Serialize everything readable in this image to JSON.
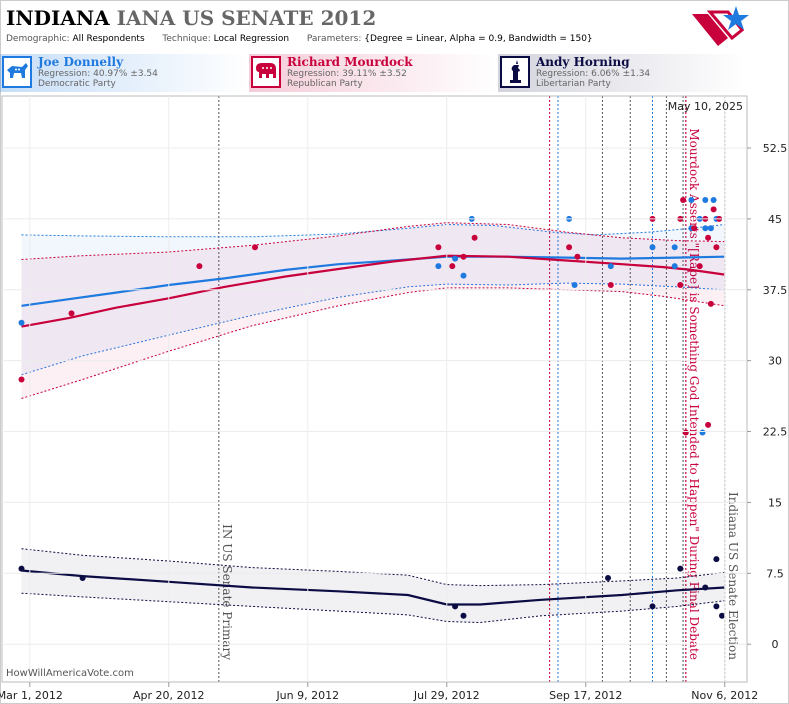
{
  "header": {
    "title_state": "INDIANA",
    "title_rest": "IANA US SENATE 2012",
    "demographic_label": "Demographic:",
    "demographic_value": "All Respondents",
    "technique_label": "Technique:",
    "technique_value": "Local Regression",
    "parameters_label": "Parameters:",
    "parameters_value": "{Degree = Linear, Alpha = 0.9, Bandwidth = 150}"
  },
  "candidates": [
    {
      "name": "Joe Donnelly",
      "regression": "Regression: 40.97% ±3.54",
      "party": "Democratic Party",
      "color": "#1f7ae0",
      "icon": "donkey-icon"
    },
    {
      "name": "Richard Mourdock",
      "regression": "Regression: 39.11% ±3.52",
      "party": "Republican Party",
      "color": "#c8003c",
      "icon": "elephant-icon"
    },
    {
      "name": "Andy Horning",
      "regression": "Regression: 6.06% ±1.34",
      "party": "Libertarian Party",
      "color": "#0c0c44",
      "icon": "liberty-icon"
    }
  ],
  "chart_data": {
    "type": "scatter",
    "date_label": "May 10, 2025",
    "credit": "HowWillAmericaVote.com",
    "x_ticks": [
      {
        "date": "2012-03-01",
        "label": "Mar 1, 2012"
      },
      {
        "date": "2012-04-20",
        "label": "Apr 20, 2012"
      },
      {
        "date": "2012-06-09",
        "label": "Jun 9, 2012"
      },
      {
        "date": "2012-07-29",
        "label": "Jul 29, 2012"
      },
      {
        "date": "2012-09-17",
        "label": "Sep 17, 2012"
      },
      {
        "date": "2012-11-06",
        "label": "Nov 6, 2012"
      }
    ],
    "xlim": [
      "2012-02-20",
      "2012-11-14"
    ],
    "y_ticks": [
      0,
      7.5,
      15,
      22.5,
      30,
      37.5,
      45,
      52.5
    ],
    "ylim": [
      -4,
      58
    ],
    "events": [
      {
        "date": "2012-05-08",
        "label": "IN US Senate Primary",
        "color": "#555555"
      },
      {
        "date": "2012-10-23",
        "label": "Mourdock Asserts \"[Rape] is Something God Intended to Happen\" During Final Debate",
        "color": "#c8003c"
      },
      {
        "date": "2012-11-06",
        "label": "Indiana US Senate Election",
        "color": "#555555"
      }
    ],
    "debate_lines": [
      {
        "date": "2012-09-04",
        "color": "#c8003c"
      },
      {
        "date": "2012-09-07",
        "color": "#1f7ae0"
      },
      {
        "date": "2012-09-23",
        "color": "#555555"
      },
      {
        "date": "2012-10-03",
        "color": "#555555"
      },
      {
        "date": "2012-10-11",
        "color": "#1f7ae0"
      },
      {
        "date": "2012-10-16",
        "color": "#555555"
      },
      {
        "date": "2012-10-22",
        "color": "#555555"
      },
      {
        "date": "2012-10-23",
        "color": "#c8003c"
      }
    ],
    "series": [
      {
        "name": "Joe Donnelly",
        "color": "#1f7ae0",
        "trend": [
          [
            "2012-02-27",
            35.8
          ],
          [
            "2012-03-15",
            36.5
          ],
          [
            "2012-04-01",
            37.2
          ],
          [
            "2012-04-20",
            38.0
          ],
          [
            "2012-05-10",
            38.7
          ],
          [
            "2012-06-01",
            39.6
          ],
          [
            "2012-06-20",
            40.2
          ],
          [
            "2012-07-10",
            40.6
          ],
          [
            "2012-07-29",
            41.0
          ],
          [
            "2012-08-20",
            41.0
          ],
          [
            "2012-09-10",
            40.9
          ],
          [
            "2012-09-30",
            40.8
          ],
          [
            "2012-10-20",
            40.9
          ],
          [
            "2012-11-06",
            41.0
          ]
        ],
        "upper": [
          [
            "2012-02-27",
            43.3
          ],
          [
            "2012-03-20",
            43.2
          ],
          [
            "2012-04-20",
            43.1
          ],
          [
            "2012-05-20",
            43.1
          ],
          [
            "2012-06-20",
            43.4
          ],
          [
            "2012-07-15",
            44.0
          ],
          [
            "2012-07-29",
            44.4
          ],
          [
            "2012-08-15",
            44.3
          ],
          [
            "2012-09-05",
            43.6
          ],
          [
            "2012-09-20",
            43.3
          ],
          [
            "2012-10-10",
            43.6
          ],
          [
            "2012-10-25",
            44.0
          ],
          [
            "2012-11-06",
            44.4
          ]
        ],
        "lower": [
          [
            "2012-02-27",
            28.5
          ],
          [
            "2012-03-20",
            30.5
          ],
          [
            "2012-04-20",
            32.7
          ],
          [
            "2012-05-20",
            34.8
          ],
          [
            "2012-06-20",
            36.7
          ],
          [
            "2012-07-15",
            37.8
          ],
          [
            "2012-07-29",
            38.1
          ],
          [
            "2012-08-20",
            38.0
          ],
          [
            "2012-09-10",
            38.2
          ],
          [
            "2012-09-30",
            38.1
          ],
          [
            "2012-10-20",
            37.8
          ],
          [
            "2012-11-06",
            37.5
          ]
        ],
        "points": [
          [
            "2012-02-27",
            34.0
          ],
          [
            "2012-07-26",
            40.0
          ],
          [
            "2012-08-01",
            40.8
          ],
          [
            "2012-08-04",
            39.0
          ],
          [
            "2012-08-07",
            45.0
          ],
          [
            "2012-09-11",
            45.0
          ],
          [
            "2012-09-13",
            38.0
          ],
          [
            "2012-09-26",
            40.0
          ],
          [
            "2012-10-11",
            42.0
          ],
          [
            "2012-10-19",
            40.0
          ],
          [
            "2012-10-19",
            42.0
          ],
          [
            "2012-10-25",
            44.0
          ],
          [
            "2012-10-25",
            47.0
          ],
          [
            "2012-10-28",
            45.0
          ],
          [
            "2012-10-29",
            22.4
          ],
          [
            "2012-10-30",
            44.0
          ],
          [
            "2012-10-30",
            47.0
          ],
          [
            "2012-11-01",
            44.0
          ],
          [
            "2012-11-02",
            47.0
          ],
          [
            "2012-11-03",
            45.0
          ]
        ]
      },
      {
        "name": "Richard Mourdock",
        "color": "#c8003c",
        "trend": [
          [
            "2012-02-27",
            33.6
          ],
          [
            "2012-03-15",
            34.5
          ],
          [
            "2012-04-01",
            35.6
          ],
          [
            "2012-04-20",
            36.6
          ],
          [
            "2012-05-10",
            37.8
          ],
          [
            "2012-06-01",
            38.9
          ],
          [
            "2012-06-20",
            39.7
          ],
          [
            "2012-07-10",
            40.5
          ],
          [
            "2012-07-29",
            41.1
          ],
          [
            "2012-08-20",
            41.0
          ],
          [
            "2012-09-10",
            40.6
          ],
          [
            "2012-09-30",
            40.2
          ],
          [
            "2012-10-15",
            39.9
          ],
          [
            "2012-10-25",
            39.6
          ],
          [
            "2012-11-06",
            39.1
          ]
        ],
        "upper": [
          [
            "2012-02-27",
            40.7
          ],
          [
            "2012-03-20",
            41.1
          ],
          [
            "2012-04-20",
            41.5
          ],
          [
            "2012-05-20",
            42.2
          ],
          [
            "2012-06-20",
            43.2
          ],
          [
            "2012-07-15",
            44.2
          ],
          [
            "2012-07-29",
            44.6
          ],
          [
            "2012-08-20",
            44.4
          ],
          [
            "2012-09-10",
            43.6
          ],
          [
            "2012-09-30",
            43.0
          ],
          [
            "2012-10-20",
            42.7
          ],
          [
            "2012-11-06",
            42.6
          ]
        ],
        "lower": [
          [
            "2012-02-27",
            26.0
          ],
          [
            "2012-03-20",
            28.0
          ],
          [
            "2012-04-20",
            31.0
          ],
          [
            "2012-05-20",
            33.7
          ],
          [
            "2012-06-20",
            35.8
          ],
          [
            "2012-07-15",
            37.2
          ],
          [
            "2012-07-29",
            37.7
          ],
          [
            "2012-08-20",
            37.7
          ],
          [
            "2012-09-10",
            37.5
          ],
          [
            "2012-09-30",
            37.3
          ],
          [
            "2012-10-15",
            36.8
          ],
          [
            "2012-11-06",
            35.8
          ]
        ],
        "points": [
          [
            "2012-02-27",
            28.0
          ],
          [
            "2012-03-16",
            35.0
          ],
          [
            "2012-05-01",
            40.0
          ],
          [
            "2012-05-21",
            42.0
          ],
          [
            "2012-07-26",
            42.0
          ],
          [
            "2012-07-31",
            40.0
          ],
          [
            "2012-08-04",
            41.0
          ],
          [
            "2012-08-08",
            43.0
          ],
          [
            "2012-09-11",
            42.0
          ],
          [
            "2012-09-14",
            41.0
          ],
          [
            "2012-09-26",
            38.0
          ],
          [
            "2012-10-11",
            45.0
          ],
          [
            "2012-10-21",
            38.0
          ],
          [
            "2012-10-21",
            45.0
          ],
          [
            "2012-10-22",
            47.0
          ],
          [
            "2012-10-23",
            22.4
          ],
          [
            "2012-10-26",
            44.0
          ],
          [
            "2012-10-28",
            40.0
          ],
          [
            "2012-10-30",
            45.0
          ],
          [
            "2012-10-31",
            43.0
          ],
          [
            "2012-10-31",
            23.2
          ],
          [
            "2012-11-01",
            36.0
          ],
          [
            "2012-11-02",
            46.0
          ],
          [
            "2012-11-03",
            42.0
          ],
          [
            "2012-11-04",
            45.0
          ]
        ]
      },
      {
        "name": "Andy Horning",
        "color": "#0c0c44",
        "trend": [
          [
            "2012-02-27",
            7.8
          ],
          [
            "2012-03-20",
            7.2
          ],
          [
            "2012-04-20",
            6.6
          ],
          [
            "2012-05-20",
            6.0
          ],
          [
            "2012-06-20",
            5.6
          ],
          [
            "2012-07-15",
            5.2
          ],
          [
            "2012-07-29",
            4.2
          ],
          [
            "2012-08-10",
            4.2
          ],
          [
            "2012-09-01",
            4.7
          ],
          [
            "2012-09-30",
            5.2
          ],
          [
            "2012-10-20",
            5.7
          ],
          [
            "2012-11-06",
            6.0
          ]
        ],
        "upper": [
          [
            "2012-02-27",
            10.1
          ],
          [
            "2012-03-20",
            9.4
          ],
          [
            "2012-04-20",
            8.8
          ],
          [
            "2012-05-20",
            8.1
          ],
          [
            "2012-06-20",
            7.7
          ],
          [
            "2012-07-15",
            7.3
          ],
          [
            "2012-07-29",
            6.3
          ],
          [
            "2012-08-10",
            6.2
          ],
          [
            "2012-09-01",
            6.3
          ],
          [
            "2012-09-30",
            6.7
          ],
          [
            "2012-10-20",
            7.0
          ],
          [
            "2012-11-06",
            7.6
          ]
        ],
        "lower": [
          [
            "2012-02-27",
            5.4
          ],
          [
            "2012-03-20",
            5.0
          ],
          [
            "2012-04-20",
            4.5
          ],
          [
            "2012-05-20",
            4.0
          ],
          [
            "2012-06-20",
            3.5
          ],
          [
            "2012-07-15",
            3.1
          ],
          [
            "2012-07-29",
            2.4
          ],
          [
            "2012-08-10",
            2.3
          ],
          [
            "2012-09-01",
            3.0
          ],
          [
            "2012-09-30",
            3.5
          ],
          [
            "2012-10-20",
            4.0
          ],
          [
            "2012-11-06",
            4.6
          ]
        ],
        "points": [
          [
            "2012-02-27",
            8.0
          ],
          [
            "2012-03-20",
            7.0
          ],
          [
            "2012-08-01",
            4.0
          ],
          [
            "2012-08-04",
            3.0
          ],
          [
            "2012-09-25",
            7.0
          ],
          [
            "2012-10-11",
            4.0
          ],
          [
            "2012-10-21",
            8.0
          ],
          [
            "2012-10-30",
            6.0
          ],
          [
            "2012-11-03",
            9.0
          ],
          [
            "2012-11-03",
            4.0
          ],
          [
            "2012-11-05",
            3.0
          ]
        ]
      }
    ]
  }
}
